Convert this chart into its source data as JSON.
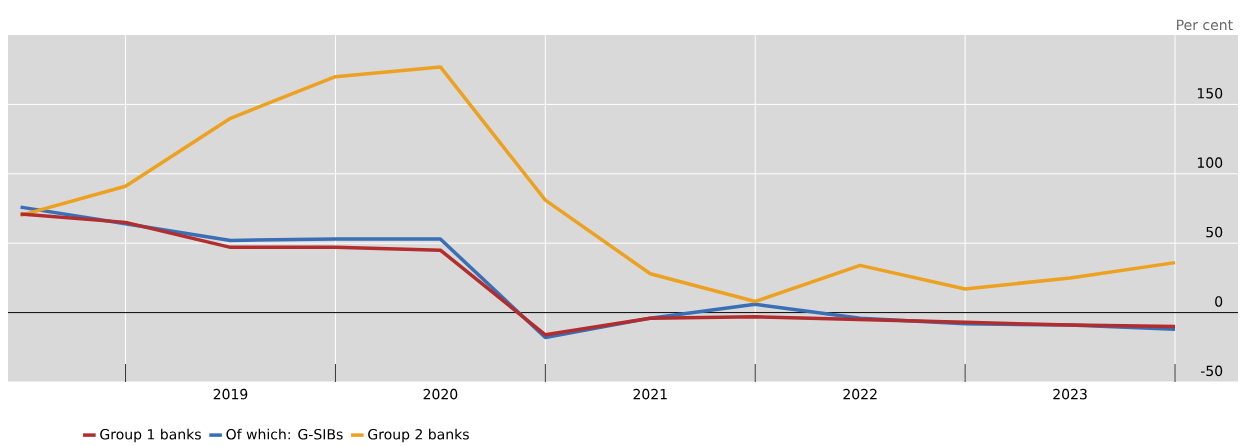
{
  "chart_data": {
    "type": "line",
    "ylabel": "Per cent",
    "x": [
      2018,
      2018.5,
      2019,
      2019.5,
      2020,
      2020.5,
      2021,
      2021.5,
      2022,
      2022.5,
      2023,
      2023.5
    ],
    "series": [
      {
        "name": "Group 1 banks",
        "color": "#b22d2d",
        "values": [
          71,
          65,
          47,
          47,
          45,
          -16,
          -4,
          -3,
          -5,
          -7,
          -9,
          -10
        ]
      },
      {
        "name": "Of which: G-SIBs",
        "color": "#3a6eb5",
        "values": [
          76,
          64,
          52,
          53,
          53,
          -18,
          -4,
          6,
          -4,
          -8,
          -9,
          -12
        ]
      },
      {
        "name": "Group 2 banks",
        "color": "#eda121",
        "values": [
          70,
          91,
          140,
          170,
          177,
          81,
          28,
          8,
          34,
          17,
          25,
          36
        ]
      }
    ],
    "xlim": [
      2017.94,
      2023.8
    ],
    "ylim": [
      -50,
      200
    ],
    "xticks": [
      {
        "value": 2018.5,
        "label": null
      },
      {
        "value": 2019,
        "label": "2019"
      },
      {
        "value": 2019.5,
        "label": null
      },
      {
        "value": 2020,
        "label": "2020"
      },
      {
        "value": 2020.5,
        "label": null
      },
      {
        "value": 2021,
        "label": "2021"
      },
      {
        "value": 2021.5,
        "label": null
      },
      {
        "value": 2022,
        "label": "2022"
      },
      {
        "value": 2022.5,
        "label": null
      },
      {
        "value": 2023,
        "label": "2023"
      },
      {
        "value": 2023.5,
        "label": null
      }
    ],
    "yticks": [
      -50,
      0,
      50,
      100,
      150
    ],
    "ref_lines": [
      {
        "axis": "y",
        "value": 0,
        "color": "#000000"
      }
    ],
    "grid": true,
    "legend": "bottom left",
    "marker": "none",
    "line_style": "solid"
  }
}
